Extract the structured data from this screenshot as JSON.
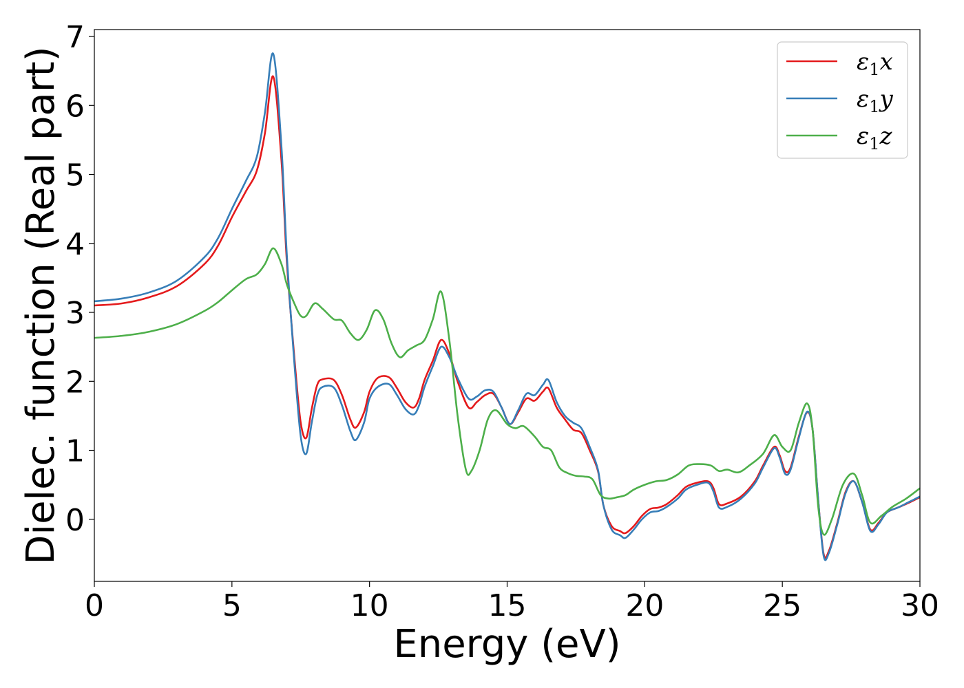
{
  "chart_data": {
    "type": "line",
    "title": "",
    "xlabel": "Energy (eV)",
    "ylabel": "Dielec. function (Real part)",
    "xlim": [
      0,
      30
    ],
    "ylim": [
      -0.9,
      7.1
    ],
    "xticks": [
      0,
      5,
      10,
      15,
      20,
      25,
      30
    ],
    "yticks": [
      0,
      1,
      2,
      3,
      4,
      5,
      6,
      7
    ],
    "grid": false,
    "legend_position": "top-right",
    "series": [
      {
        "name": "ε1x",
        "legend_main": "ε",
        "legend_sub": "1",
        "legend_var": "x",
        "color": "#e41a1c",
        "points": [
          [
            0,
            3.1
          ],
          [
            1,
            3.13
          ],
          [
            2,
            3.22
          ],
          [
            3,
            3.38
          ],
          [
            4,
            3.7
          ],
          [
            4.5,
            3.97
          ],
          [
            5,
            4.38
          ],
          [
            5.5,
            4.75
          ],
          [
            5.9,
            5.05
          ],
          [
            6.2,
            5.6
          ],
          [
            6.5,
            6.42
          ],
          [
            6.8,
            5.2
          ],
          [
            7.0,
            3.7
          ],
          [
            7.3,
            2.2
          ],
          [
            7.5,
            1.4
          ],
          [
            7.7,
            1.18
          ],
          [
            7.9,
            1.6
          ],
          [
            8.1,
            1.95
          ],
          [
            8.3,
            2.03
          ],
          [
            8.7,
            2.02
          ],
          [
            9.0,
            1.8
          ],
          [
            9.3,
            1.45
          ],
          [
            9.5,
            1.33
          ],
          [
            9.8,
            1.55
          ],
          [
            10.0,
            1.85
          ],
          [
            10.3,
            2.05
          ],
          [
            10.7,
            2.06
          ],
          [
            11.0,
            1.9
          ],
          [
            11.3,
            1.7
          ],
          [
            11.6,
            1.62
          ],
          [
            11.8,
            1.75
          ],
          [
            12.0,
            2.02
          ],
          [
            12.3,
            2.3
          ],
          [
            12.6,
            2.6
          ],
          [
            12.9,
            2.4
          ],
          [
            13.2,
            2.0
          ],
          [
            13.6,
            1.62
          ],
          [
            13.9,
            1.7
          ],
          [
            14.2,
            1.8
          ],
          [
            14.5,
            1.82
          ],
          [
            14.8,
            1.62
          ],
          [
            15.1,
            1.38
          ],
          [
            15.4,
            1.55
          ],
          [
            15.7,
            1.75
          ],
          [
            16.0,
            1.72
          ],
          [
            16.3,
            1.85
          ],
          [
            16.5,
            1.9
          ],
          [
            16.8,
            1.62
          ],
          [
            17.1,
            1.45
          ],
          [
            17.4,
            1.3
          ],
          [
            17.7,
            1.25
          ],
          [
            18.0,
            1.0
          ],
          [
            18.3,
            0.7
          ],
          [
            18.5,
            0.2
          ],
          [
            18.8,
            -0.1
          ],
          [
            19.1,
            -0.17
          ],
          [
            19.3,
            -0.2
          ],
          [
            19.6,
            -0.1
          ],
          [
            19.9,
            0.05
          ],
          [
            20.2,
            0.15
          ],
          [
            20.5,
            0.17
          ],
          [
            20.8,
            0.22
          ],
          [
            21.2,
            0.35
          ],
          [
            21.5,
            0.47
          ],
          [
            21.9,
            0.53
          ],
          [
            22.3,
            0.55
          ],
          [
            22.5,
            0.45
          ],
          [
            22.7,
            0.22
          ],
          [
            23.0,
            0.23
          ],
          [
            23.5,
            0.33
          ],
          [
            24.0,
            0.55
          ],
          [
            24.3,
            0.78
          ],
          [
            24.7,
            1.05
          ],
          [
            24.9,
            0.93
          ],
          [
            25.1,
            0.7
          ],
          [
            25.3,
            0.75
          ],
          [
            25.6,
            1.2
          ],
          [
            25.9,
            1.55
          ],
          [
            26.1,
            1.3
          ],
          [
            26.3,
            0.3
          ],
          [
            26.5,
            -0.5
          ],
          [
            26.7,
            -0.45
          ],
          [
            27.0,
            -0.05
          ],
          [
            27.3,
            0.4
          ],
          [
            27.6,
            0.55
          ],
          [
            27.9,
            0.25
          ],
          [
            28.2,
            -0.15
          ],
          [
            28.5,
            -0.05
          ],
          [
            28.8,
            0.1
          ],
          [
            29.2,
            0.17
          ],
          [
            29.6,
            0.24
          ],
          [
            30.0,
            0.32
          ]
        ]
      },
      {
        "name": "ε1y",
        "legend_main": "ε",
        "legend_sub": "1",
        "legend_var": "y",
        "color": "#377eb8",
        "points": [
          [
            0,
            3.16
          ],
          [
            1,
            3.2
          ],
          [
            2,
            3.29
          ],
          [
            3,
            3.46
          ],
          [
            4,
            3.8
          ],
          [
            4.5,
            4.08
          ],
          [
            5,
            4.5
          ],
          [
            5.5,
            4.9
          ],
          [
            5.9,
            5.25
          ],
          [
            6.2,
            5.9
          ],
          [
            6.5,
            6.75
          ],
          [
            6.8,
            5.4
          ],
          [
            7.0,
            3.8
          ],
          [
            7.3,
            2.1
          ],
          [
            7.5,
            1.2
          ],
          [
            7.7,
            0.95
          ],
          [
            7.9,
            1.4
          ],
          [
            8.1,
            1.8
          ],
          [
            8.3,
            1.92
          ],
          [
            8.7,
            1.91
          ],
          [
            9.0,
            1.65
          ],
          [
            9.3,
            1.28
          ],
          [
            9.5,
            1.15
          ],
          [
            9.8,
            1.4
          ],
          [
            10.0,
            1.75
          ],
          [
            10.3,
            1.92
          ],
          [
            10.7,
            1.96
          ],
          [
            11.0,
            1.8
          ],
          [
            11.3,
            1.6
          ],
          [
            11.6,
            1.52
          ],
          [
            11.8,
            1.65
          ],
          [
            12.0,
            1.92
          ],
          [
            12.3,
            2.22
          ],
          [
            12.6,
            2.5
          ],
          [
            12.9,
            2.35
          ],
          [
            13.2,
            2.05
          ],
          [
            13.6,
            1.75
          ],
          [
            13.9,
            1.78
          ],
          [
            14.2,
            1.87
          ],
          [
            14.5,
            1.85
          ],
          [
            14.8,
            1.62
          ],
          [
            15.1,
            1.38
          ],
          [
            15.4,
            1.58
          ],
          [
            15.7,
            1.82
          ],
          [
            16.0,
            1.8
          ],
          [
            16.3,
            1.95
          ],
          [
            16.5,
            2.02
          ],
          [
            16.8,
            1.7
          ],
          [
            17.1,
            1.5
          ],
          [
            17.4,
            1.4
          ],
          [
            17.7,
            1.32
          ],
          [
            18.0,
            1.05
          ],
          [
            18.3,
            0.72
          ],
          [
            18.5,
            0.2
          ],
          [
            18.8,
            -0.15
          ],
          [
            19.1,
            -0.23
          ],
          [
            19.3,
            -0.27
          ],
          [
            19.6,
            -0.15
          ],
          [
            19.9,
            0.0
          ],
          [
            20.2,
            0.1
          ],
          [
            20.5,
            0.12
          ],
          [
            20.8,
            0.18
          ],
          [
            21.2,
            0.3
          ],
          [
            21.5,
            0.43
          ],
          [
            21.9,
            0.5
          ],
          [
            22.3,
            0.53
          ],
          [
            22.5,
            0.4
          ],
          [
            22.7,
            0.17
          ],
          [
            23.0,
            0.18
          ],
          [
            23.5,
            0.3
          ],
          [
            24.0,
            0.52
          ],
          [
            24.3,
            0.75
          ],
          [
            24.7,
            1.03
          ],
          [
            24.9,
            0.9
          ],
          [
            25.1,
            0.66
          ],
          [
            25.3,
            0.72
          ],
          [
            25.6,
            1.18
          ],
          [
            25.9,
            1.56
          ],
          [
            26.1,
            1.3
          ],
          [
            26.3,
            0.3
          ],
          [
            26.5,
            -0.53
          ],
          [
            26.7,
            -0.48
          ],
          [
            27.0,
            -0.07
          ],
          [
            27.3,
            0.38
          ],
          [
            27.6,
            0.55
          ],
          [
            27.9,
            0.25
          ],
          [
            28.2,
            -0.17
          ],
          [
            28.5,
            -0.07
          ],
          [
            28.8,
            0.1
          ],
          [
            29.2,
            0.17
          ],
          [
            29.6,
            0.25
          ],
          [
            30.0,
            0.33
          ]
        ]
      },
      {
        "name": "ε1z",
        "legend_main": "ε",
        "legend_sub": "1",
        "legend_var": "z",
        "color": "#4daf4a",
        "points": [
          [
            0,
            2.63
          ],
          [
            1,
            2.66
          ],
          [
            2,
            2.72
          ],
          [
            3,
            2.83
          ],
          [
            4,
            3.02
          ],
          [
            4.5,
            3.15
          ],
          [
            5,
            3.32
          ],
          [
            5.5,
            3.48
          ],
          [
            5.9,
            3.55
          ],
          [
            6.2,
            3.7
          ],
          [
            6.5,
            3.93
          ],
          [
            6.8,
            3.7
          ],
          [
            7.0,
            3.4
          ],
          [
            7.3,
            3.1
          ],
          [
            7.5,
            2.95
          ],
          [
            7.7,
            2.95
          ],
          [
            8.0,
            3.13
          ],
          [
            8.3,
            3.05
          ],
          [
            8.7,
            2.9
          ],
          [
            9.0,
            2.88
          ],
          [
            9.3,
            2.7
          ],
          [
            9.6,
            2.6
          ],
          [
            9.9,
            2.75
          ],
          [
            10.2,
            3.03
          ],
          [
            10.5,
            2.9
          ],
          [
            10.8,
            2.55
          ],
          [
            11.1,
            2.35
          ],
          [
            11.4,
            2.45
          ],
          [
            11.7,
            2.52
          ],
          [
            12.0,
            2.6
          ],
          [
            12.3,
            2.9
          ],
          [
            12.6,
            3.3
          ],
          [
            12.9,
            2.6
          ],
          [
            13.2,
            1.5
          ],
          [
            13.5,
            0.72
          ],
          [
            13.7,
            0.7
          ],
          [
            14.0,
            1.0
          ],
          [
            14.3,
            1.45
          ],
          [
            14.6,
            1.58
          ],
          [
            15.0,
            1.38
          ],
          [
            15.3,
            1.32
          ],
          [
            15.6,
            1.35
          ],
          [
            16.0,
            1.2
          ],
          [
            16.3,
            1.05
          ],
          [
            16.6,
            1.0
          ],
          [
            16.9,
            0.75
          ],
          [
            17.2,
            0.67
          ],
          [
            17.5,
            0.63
          ],
          [
            17.8,
            0.62
          ],
          [
            18.1,
            0.58
          ],
          [
            18.4,
            0.35
          ],
          [
            18.7,
            0.3
          ],
          [
            19.0,
            0.32
          ],
          [
            19.3,
            0.35
          ],
          [
            19.6,
            0.43
          ],
          [
            20.0,
            0.5
          ],
          [
            20.4,
            0.55
          ],
          [
            20.8,
            0.57
          ],
          [
            21.2,
            0.65
          ],
          [
            21.6,
            0.78
          ],
          [
            22.0,
            0.8
          ],
          [
            22.4,
            0.78
          ],
          [
            22.7,
            0.7
          ],
          [
            23.0,
            0.72
          ],
          [
            23.4,
            0.68
          ],
          [
            23.8,
            0.78
          ],
          [
            24.3,
            0.95
          ],
          [
            24.7,
            1.22
          ],
          [
            25.0,
            1.05
          ],
          [
            25.3,
            1.0
          ],
          [
            25.6,
            1.4
          ],
          [
            25.9,
            1.68
          ],
          [
            26.1,
            1.3
          ],
          [
            26.3,
            0.2
          ],
          [
            26.5,
            -0.22
          ],
          [
            26.8,
            0.0
          ],
          [
            27.2,
            0.5
          ],
          [
            27.6,
            0.66
          ],
          [
            27.9,
            0.35
          ],
          [
            28.2,
            -0.05
          ],
          [
            28.6,
            0.05
          ],
          [
            29.0,
            0.18
          ],
          [
            29.5,
            0.3
          ],
          [
            30.0,
            0.45
          ]
        ]
      }
    ]
  }
}
